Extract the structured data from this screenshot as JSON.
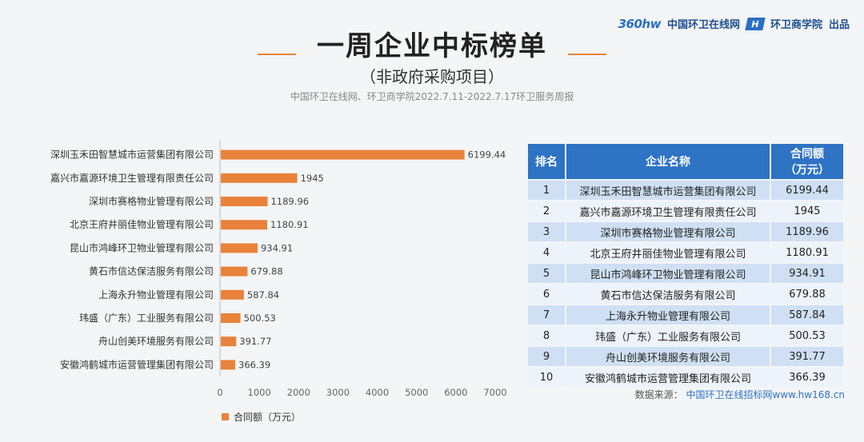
{
  "brand": {
    "logo_text": "360hw",
    "site_name": "中国环卫在线网",
    "icon_label": "H",
    "college_name": "环卫商学院",
    "suffix": "出品"
  },
  "header": {
    "title": "一周企业中标榜单",
    "subtitle": "（非政府采购项目）",
    "source_line": "中国环卫在线网、环卫商学院2022.7.11-2022.7.17环卫服务周报"
  },
  "chart_data": {
    "type": "bar",
    "orientation": "horizontal",
    "categories": [
      "深圳玉禾田智慧城市运营集团有限公司",
      "嘉兴市嘉源环境卫生管理有限责任公司",
      "深圳市赛格物业管理有限公司",
      "北京王府井丽佳物业管理有限公司",
      "昆山市鸿峰环卫物业管理有限公司",
      "黄石市信达保洁服务有限公司",
      "上海永升物业管理有限公司",
      "玮盛（广东）工业服务有限公司",
      "舟山创美环境服务有限公司",
      "安徽鸿鹤城市运营管理集团有限公司"
    ],
    "series": [
      {
        "name": "合同额（万元）",
        "values": [
          6199.44,
          1945,
          1189.96,
          1180.91,
          934.91,
          679.88,
          587.84,
          500.53,
          391.77,
          366.39
        ],
        "labels": [
          "6199.44",
          "1945",
          "1189.96",
          "1180.91",
          "934.91",
          "679.88",
          "587.84",
          "500.53",
          "391.77",
          "366.39"
        ]
      }
    ],
    "xlim": [
      0,
      7000
    ],
    "xticks": [
      0,
      1000,
      2000,
      3000,
      4000,
      5000,
      6000,
      7000
    ],
    "legend_position": "bottom-left",
    "bar_color": "#e9823a",
    "grid": false
  },
  "table": {
    "headers": {
      "rank": "排名",
      "company": "企业名称",
      "amount_line1": "合同额",
      "amount_line2": "（万元）"
    },
    "rows": [
      {
        "rank": "1",
        "company": "深圳玉禾田智慧城市运营集团有限公司",
        "amount": "6199.44"
      },
      {
        "rank": "2",
        "company": "嘉兴市嘉源环境卫生管理有限责任公司",
        "amount": "1945"
      },
      {
        "rank": "3",
        "company": "深圳市赛格物业管理有限公司",
        "amount": "1189.96"
      },
      {
        "rank": "4",
        "company": "北京王府井丽佳物业管理有限公司",
        "amount": "1180.91"
      },
      {
        "rank": "5",
        "company": "昆山市鸿峰环卫物业管理有限公司",
        "amount": "934.91"
      },
      {
        "rank": "6",
        "company": "黄石市信达保洁服务有限公司",
        "amount": "679.88"
      },
      {
        "rank": "7",
        "company": "上海永升物业管理有限公司",
        "amount": "587.84"
      },
      {
        "rank": "8",
        "company": "玮盛（广东）工业服务有限公司",
        "amount": "500.53"
      },
      {
        "rank": "9",
        "company": "舟山创美环境服务有限公司",
        "amount": "391.77"
      },
      {
        "rank": "10",
        "company": "安徽鸿鹤城市运营管理集团有限公司",
        "amount": "366.39"
      }
    ]
  },
  "footer": {
    "label": "数据来源：",
    "source": "中国环卫在线招标网www.hw168.cn"
  },
  "colors": {
    "accent": "#e9823a",
    "table_header": "#2f73c4",
    "row_odd": "#cfe0f4",
    "row_even": "#edf3fa"
  }
}
